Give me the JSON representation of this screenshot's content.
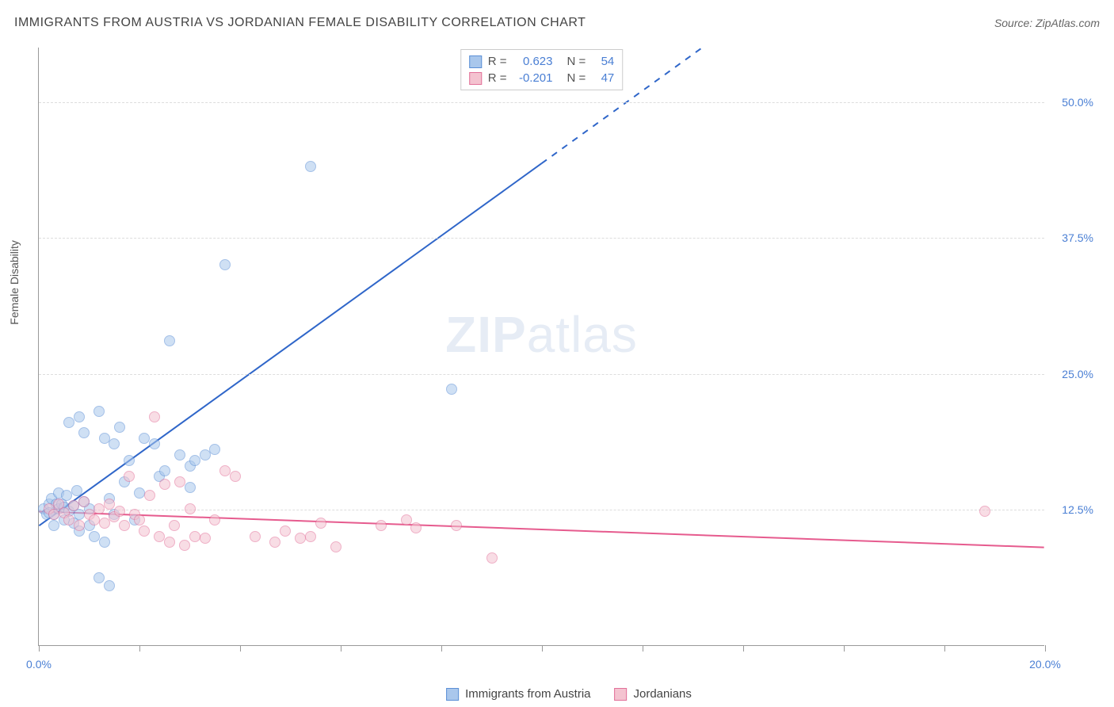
{
  "header": {
    "title": "IMMIGRANTS FROM AUSTRIA VS JORDANIAN FEMALE DISABILITY CORRELATION CHART",
    "source": "Source: ZipAtlas.com"
  },
  "watermark": {
    "zip": "ZIP",
    "atlas": "atlas"
  },
  "y_axis": {
    "label": "Female Disability"
  },
  "chart": {
    "type": "scatter",
    "xlim": [
      0,
      20
    ],
    "ylim": [
      0,
      55
    ],
    "x_ticks": [
      0.0,
      2.0,
      4.0,
      6.0,
      8.0,
      10.0,
      12.0,
      14.0,
      16.0,
      18.0,
      20.0
    ],
    "x_tick_labels": {
      "0": "0.0%",
      "20": "20.0%"
    },
    "y_grid": [
      12.5,
      25.0,
      37.5,
      50.0
    ],
    "y_tick_labels": [
      "12.5%",
      "25.0%",
      "37.5%",
      "50.0%"
    ],
    "background_color": "#ffffff",
    "grid_color": "#dddddd",
    "axis_color": "#999999",
    "tick_label_color": "#4a7fd4",
    "marker_radius": 7,
    "marker_opacity": 0.55,
    "series": [
      {
        "name": "Immigrants from Austria",
        "fill_color": "#a9c7ec",
        "stroke_color": "#5b8fd6",
        "R": "0.623",
        "N": "54",
        "trend": {
          "x1": 0,
          "y1": 11.0,
          "x2": 13.2,
          "y2": 55.0,
          "solid_until_x": 10.0,
          "color": "#2f66c9",
          "width": 2
        },
        "points": [
          [
            0.1,
            12.5
          ],
          [
            0.15,
            12.0
          ],
          [
            0.2,
            13.0
          ],
          [
            0.2,
            12.2
          ],
          [
            0.25,
            13.5
          ],
          [
            0.3,
            12.0
          ],
          [
            0.3,
            11.0
          ],
          [
            0.35,
            13.0
          ],
          [
            0.4,
            12.5
          ],
          [
            0.4,
            14.0
          ],
          [
            0.45,
            13.0
          ],
          [
            0.5,
            12.7
          ],
          [
            0.5,
            11.5
          ],
          [
            0.55,
            13.8
          ],
          [
            0.6,
            12.3
          ],
          [
            0.6,
            20.5
          ],
          [
            0.7,
            12.8
          ],
          [
            0.7,
            11.2
          ],
          [
            0.75,
            14.2
          ],
          [
            0.8,
            12.0
          ],
          [
            0.8,
            10.5
          ],
          [
            0.8,
            21.0
          ],
          [
            0.9,
            13.2
          ],
          [
            0.9,
            19.5
          ],
          [
            1.0,
            12.5
          ],
          [
            1.0,
            11.0
          ],
          [
            1.1,
            10.0
          ],
          [
            1.2,
            21.5
          ],
          [
            1.2,
            6.2
          ],
          [
            1.3,
            19.0
          ],
          [
            1.3,
            9.5
          ],
          [
            1.4,
            13.5
          ],
          [
            1.5,
            12.0
          ],
          [
            1.5,
            18.5
          ],
          [
            1.6,
            20.0
          ],
          [
            1.7,
            15.0
          ],
          [
            1.8,
            17.0
          ],
          [
            1.9,
            11.5
          ],
          [
            2.0,
            14.0
          ],
          [
            2.1,
            19.0
          ],
          [
            2.3,
            18.5
          ],
          [
            2.4,
            15.5
          ],
          [
            2.5,
            16.0
          ],
          [
            2.6,
            28.0
          ],
          [
            2.8,
            17.5
          ],
          [
            3.0,
            16.5
          ],
          [
            3.0,
            14.5
          ],
          [
            3.1,
            17.0
          ],
          [
            3.3,
            17.5
          ],
          [
            3.5,
            18.0
          ],
          [
            3.7,
            35.0
          ],
          [
            5.4,
            44.0
          ],
          [
            8.2,
            23.5
          ],
          [
            1.4,
            5.5
          ]
        ]
      },
      {
        "name": "Jordanians",
        "fill_color": "#f4c3d0",
        "stroke_color": "#e27099",
        "R": "-0.201",
        "N": "47",
        "trend": {
          "x1": 0,
          "y1": 12.3,
          "x2": 20,
          "y2": 9.0,
          "solid_until_x": 20.0,
          "color": "#e65b8e",
          "width": 2
        },
        "points": [
          [
            0.2,
            12.5
          ],
          [
            0.3,
            12.0
          ],
          [
            0.4,
            13.0
          ],
          [
            0.5,
            12.2
          ],
          [
            0.6,
            11.5
          ],
          [
            0.7,
            12.8
          ],
          [
            0.8,
            11.0
          ],
          [
            0.9,
            13.2
          ],
          [
            1.0,
            12.0
          ],
          [
            1.1,
            11.5
          ],
          [
            1.2,
            12.5
          ],
          [
            1.3,
            11.2
          ],
          [
            1.4,
            13.0
          ],
          [
            1.5,
            11.8
          ],
          [
            1.6,
            12.3
          ],
          [
            1.7,
            11.0
          ],
          [
            1.8,
            15.5
          ],
          [
            1.9,
            12.0
          ],
          [
            2.0,
            11.5
          ],
          [
            2.1,
            10.5
          ],
          [
            2.2,
            13.8
          ],
          [
            2.3,
            21.0
          ],
          [
            2.4,
            10.0
          ],
          [
            2.6,
            9.5
          ],
          [
            2.7,
            11.0
          ],
          [
            2.8,
            15.0
          ],
          [
            2.9,
            9.2
          ],
          [
            3.0,
            12.5
          ],
          [
            3.1,
            10.0
          ],
          [
            3.3,
            9.8
          ],
          [
            3.5,
            11.5
          ],
          [
            3.7,
            16.0
          ],
          [
            3.9,
            15.5
          ],
          [
            4.3,
            10.0
          ],
          [
            4.7,
            9.5
          ],
          [
            4.9,
            10.5
          ],
          [
            5.2,
            9.8
          ],
          [
            5.4,
            10.0
          ],
          [
            5.6,
            11.2
          ],
          [
            5.9,
            9.0
          ],
          [
            6.8,
            11.0
          ],
          [
            7.3,
            11.5
          ],
          [
            7.5,
            10.8
          ],
          [
            8.3,
            11.0
          ],
          [
            9.0,
            8.0
          ],
          [
            18.8,
            12.3
          ],
          [
            2.5,
            14.8
          ]
        ]
      }
    ]
  },
  "stats_box": {
    "rows": [
      {
        "swatch_fill": "#a9c7ec",
        "swatch_stroke": "#5b8fd6",
        "r_label": "R =",
        "r_val": "0.623",
        "n_label": "N =",
        "n_val": "54"
      },
      {
        "swatch_fill": "#f4c3d0",
        "swatch_stroke": "#e27099",
        "r_label": "R =",
        "r_val": "-0.201",
        "n_label": "N =",
        "n_val": "47"
      }
    ]
  },
  "bottom_legend": {
    "items": [
      {
        "swatch_fill": "#a9c7ec",
        "swatch_stroke": "#5b8fd6",
        "label": "Immigrants from Austria"
      },
      {
        "swatch_fill": "#f4c3d0",
        "swatch_stroke": "#e27099",
        "label": "Jordanians"
      }
    ]
  }
}
